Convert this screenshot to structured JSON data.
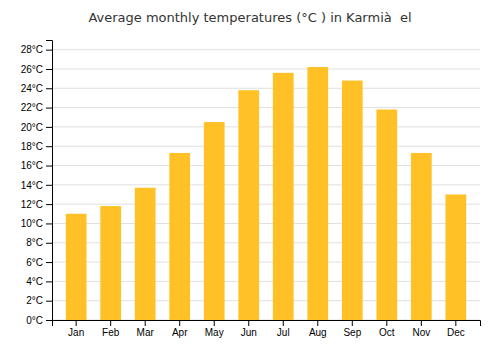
{
  "chart_data": {
    "type": "bar",
    "title": "Average monthly temperatures (°C ) in Karmià  el",
    "categories": [
      "Jan",
      "Feb",
      "Mar",
      "Apr",
      "May",
      "Jun",
      "Jul",
      "Aug",
      "Sep",
      "Oct",
      "Nov",
      "Dec"
    ],
    "values": [
      11.0,
      11.8,
      13.7,
      17.3,
      20.5,
      23.8,
      25.6,
      26.2,
      24.8,
      21.8,
      17.3,
      13.0
    ],
    "color": "#FFC125",
    "ylim": [
      0,
      29
    ],
    "yticks": [
      {
        "value": 0,
        "label": "0°C"
      },
      {
        "value": 2,
        "label": "2°C"
      },
      {
        "value": 4,
        "label": "4°C"
      },
      {
        "value": 6,
        "label": "6°C"
      },
      {
        "value": 8,
        "label": "8°C"
      },
      {
        "value": 10,
        "label": "10°C"
      },
      {
        "value": 12,
        "label": "12°C"
      },
      {
        "value": 14,
        "label": "14°C"
      },
      {
        "value": 16,
        "label": "16°C"
      },
      {
        "value": 18,
        "label": "18°C"
      },
      {
        "value": 20,
        "label": "20°C"
      },
      {
        "value": 22,
        "label": "22°C"
      },
      {
        "value": 24,
        "label": "24°C"
      },
      {
        "value": 26,
        "label": "26°C"
      },
      {
        "value": 28,
        "label": "28°C"
      }
    ],
    "grid": true
  }
}
